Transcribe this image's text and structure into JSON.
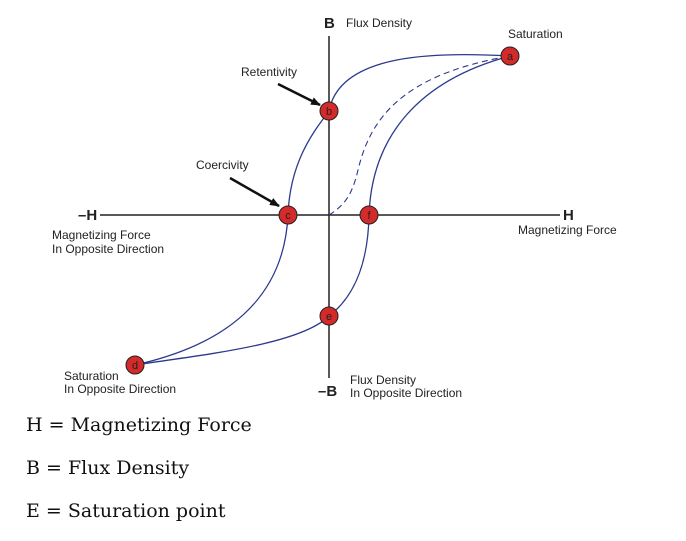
{
  "axes": {
    "b_positive": "B",
    "b_positive_label": "Flux Density",
    "b_negative": "–B",
    "b_negative_label_line1": "Flux Density",
    "b_negative_label_line2": "In Opposite Direction",
    "h_positive": "H",
    "h_positive_label": "Magnetizing Force",
    "h_negative": "–H",
    "h_negative_label_line1": "Magnetizing Force",
    "h_negative_label_line2": "In Opposite Direction"
  },
  "annotations": {
    "saturation": "Saturation",
    "saturation_opposite_line1": "Saturation",
    "saturation_opposite_line2": "In Opposite Direction",
    "retentivity": "Retentivity",
    "coercivity": "Coercivity"
  },
  "points": {
    "a": "a",
    "b": "b",
    "c": "c",
    "d": "d",
    "e": "e",
    "f": "f"
  },
  "colors": {
    "curve": "#2b3a8c",
    "point_fill": "#d42a2a",
    "axis": "#222222"
  },
  "legend": [
    "H = Magnetizing Force",
    "B = Flux Density",
    "E = Saturation point"
  ]
}
